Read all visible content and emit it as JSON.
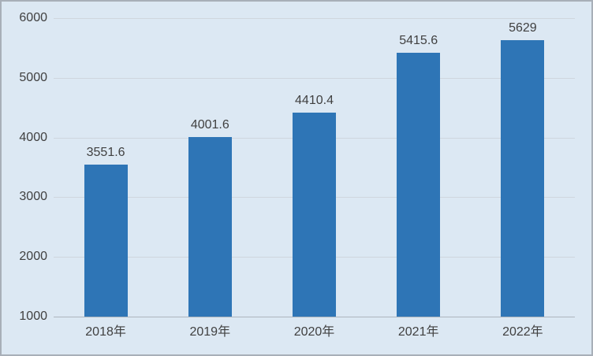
{
  "chart_data": {
    "type": "bar",
    "title": "",
    "xlabel": "",
    "ylabel": "",
    "categories": [
      "2018年",
      "2019年",
      "2020年",
      "2021年",
      "2022年"
    ],
    "values": [
      3551.6,
      4001.6,
      4410.4,
      5415.6,
      5629
    ],
    "data_labels": [
      "3551.6",
      "4001.6",
      "4410.4",
      "5415.6",
      "5629"
    ],
    "ylim": [
      1000,
      6000
    ],
    "yticks": [
      1000,
      2000,
      3000,
      4000,
      5000,
      6000
    ],
    "ytick_labels": [
      "1000",
      "2000",
      "3000",
      "4000",
      "5000",
      "6000"
    ],
    "grid": true,
    "legend": false,
    "colors": {
      "bar_fill": "#2e75b6",
      "plot_background": "#dce8f3",
      "gridline": "#cfd6de",
      "axis_line": "#adb5be",
      "text": "#404040",
      "border": "#a8afb8"
    }
  }
}
